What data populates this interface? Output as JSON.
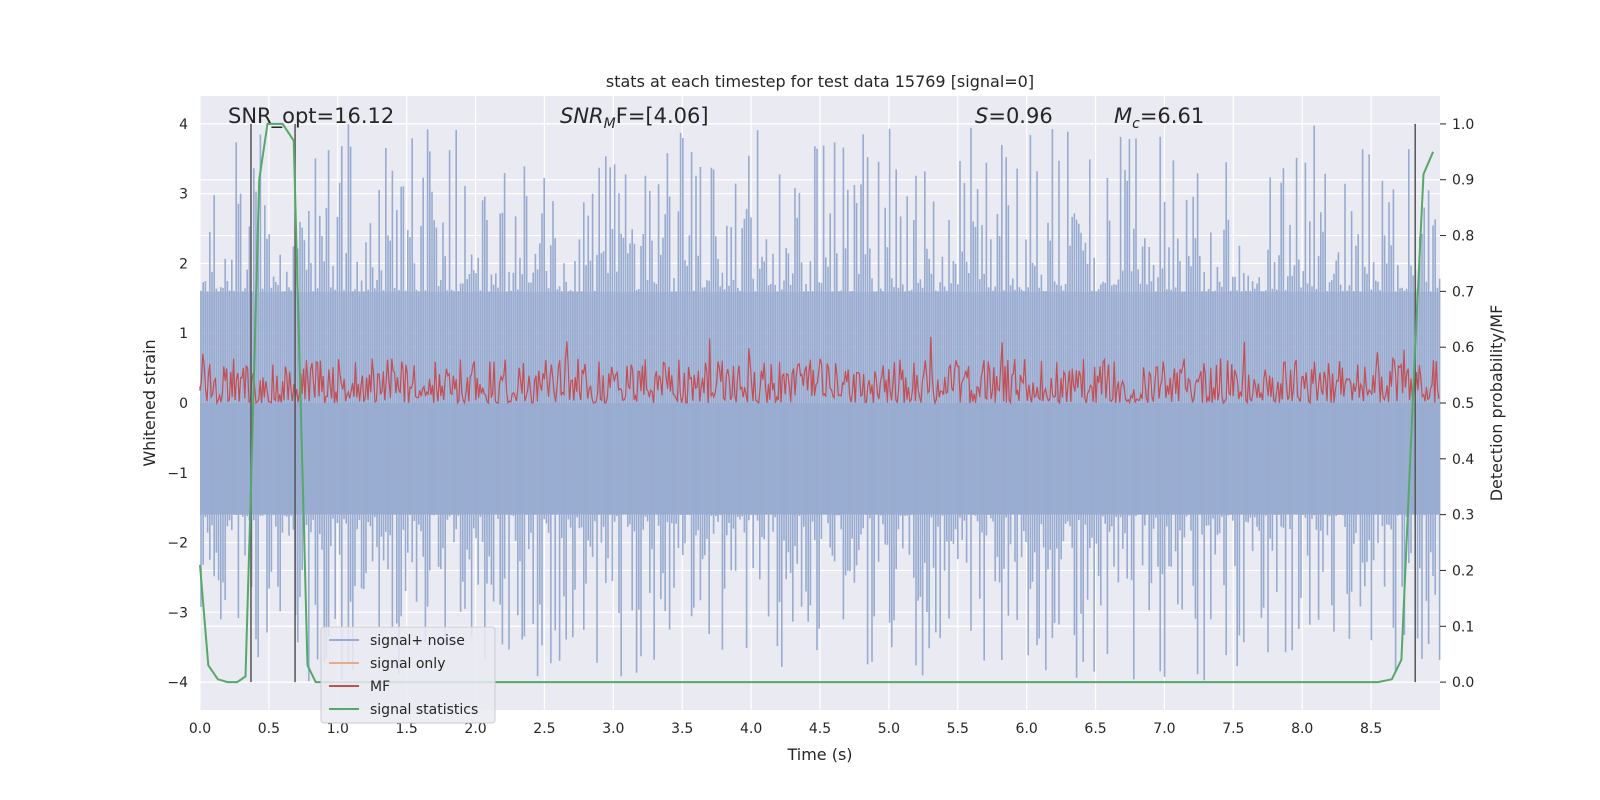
{
  "chart_data": {
    "type": "line",
    "title": "stats at each timestep for test data 15769 [signal=0]",
    "xlabel": "Time (s)",
    "ylabel": "Whitened strain",
    "y2label": "Detection probability/MF",
    "xlim": [
      0.0,
      9.0
    ],
    "ylim": [
      -4.4,
      4.4
    ],
    "y2lim": [
      -0.05,
      1.05
    ],
    "xticks": [
      0.0,
      0.5,
      1.0,
      1.5,
      2.0,
      2.5,
      3.0,
      3.5,
      4.0,
      4.5,
      5.0,
      5.5,
      6.0,
      6.5,
      7.0,
      7.5,
      8.0,
      8.5
    ],
    "xtick_labels": [
      "0.0",
      "0.5",
      "1.0",
      "1.5",
      "2.0",
      "2.5",
      "3.0",
      "3.5",
      "4.0",
      "4.5",
      "5.0",
      "5.5",
      "6.0",
      "6.5",
      "7.0",
      "7.5",
      "8.0",
      "8.5"
    ],
    "yticks": [
      -4,
      -3,
      -2,
      -1,
      0,
      1,
      2,
      3,
      4
    ],
    "ytick_labels": [
      "−4",
      "−3",
      "−2",
      "−1",
      "0",
      "1",
      "2",
      "3",
      "4"
    ],
    "y2ticks": [
      0.0,
      0.1,
      0.2,
      0.3,
      0.4,
      0.5,
      0.6,
      0.7,
      0.8,
      0.9,
      1.0
    ],
    "y2tick_labels": [
      "0.0",
      "0.1",
      "0.2",
      "0.3",
      "0.4",
      "0.5",
      "0.6",
      "0.7",
      "0.8",
      "0.9",
      "1.0"
    ],
    "grid": true,
    "legend_position": "lower-left",
    "annotations": {
      "snr_opt": "SNR_opt=16.12",
      "snr_mf_main": "SNR",
      "snr_mf_sub": "M",
      "snr_mf_rest": "F=[4.06]",
      "s_main": "S",
      "s_rest": "=0.96",
      "mc_main": "M",
      "mc_sub": "c",
      "mc_rest": "=6.61"
    },
    "vertical_lines_x": [
      0.37,
      0.69,
      8.82
    ],
    "noise_summary": {
      "name": "signal+ noise",
      "color": "#98abd0",
      "band_upper": 1.6,
      "band_lower": -1.6,
      "fill_top": 0.0,
      "fill_bottom": -1.6,
      "spike_max": 4.0,
      "spike_min": -4.0
    },
    "mf_summary": {
      "name": "MF",
      "color": "#c44e52",
      "axis": "y2",
      "baseline": 0.5,
      "typical_max": 0.58,
      "spike_max": 0.62
    },
    "series": [
      {
        "name": "signal statistics",
        "color": "#55a868",
        "axis": "y2",
        "x": [
          0.0,
          0.06,
          0.13,
          0.2,
          0.27,
          0.33,
          0.37,
          0.43,
          0.49,
          0.55,
          0.6,
          0.68,
          0.72,
          0.78,
          0.84,
          1.0,
          2.0,
          3.0,
          4.0,
          5.0,
          6.0,
          7.0,
          8.0,
          8.55,
          8.65,
          8.72,
          8.82,
          8.88,
          8.95
        ],
        "values": [
          0.21,
          0.03,
          0.005,
          0.0,
          0.0,
          0.01,
          0.35,
          0.9,
          1.0,
          1.0,
          1.0,
          0.97,
          0.6,
          0.03,
          0.0,
          0.0,
          0.0,
          0.0,
          0.0,
          0.0,
          0.0,
          0.0,
          0.0,
          0.0,
          0.005,
          0.04,
          0.6,
          0.91,
          0.95
        ]
      },
      {
        "name": "signal only",
        "color": "#dd8452",
        "values": []
      }
    ],
    "legend": [
      {
        "label": "signal+ noise",
        "color": "#98abd0"
      },
      {
        "label": "signal only",
        "color": "#eba98a"
      },
      {
        "label": "MF",
        "color": "#c44e52"
      },
      {
        "label": "signal statistics",
        "color": "#55a868"
      }
    ]
  }
}
